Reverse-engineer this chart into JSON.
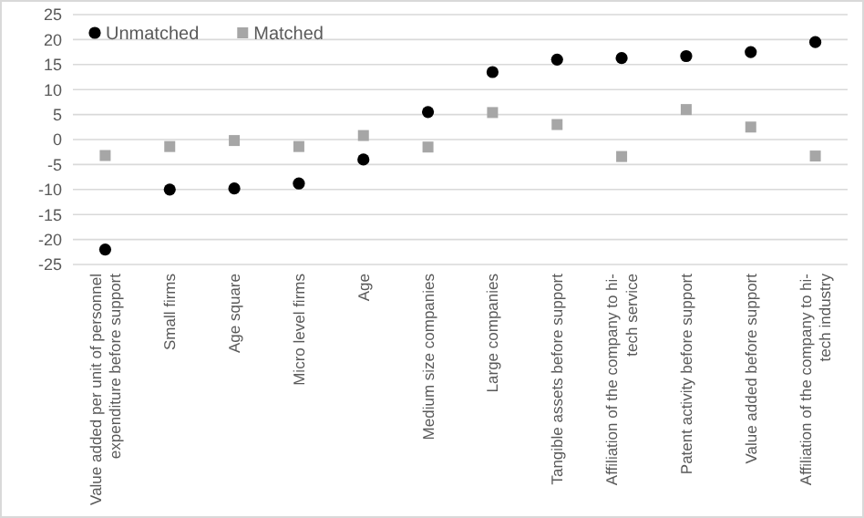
{
  "chart_data": {
    "type": "scatter",
    "categories": [
      "Value added per unit of personnel expenditure before support",
      "Small firms",
      "Age square",
      "Micro level firms",
      "Age",
      "Medium size companies",
      "Large companies",
      "Tangible assets before support",
      "Affiliation of the company to hi-tech service",
      "Patent activity before support",
      "Value added before support",
      "Affiliation of the company to hi-tech industry"
    ],
    "series": [
      {
        "name": "Unmatched",
        "color": "#000000",
        "marker": "circle",
        "values": [
          -22,
          -10,
          -9.8,
          -8.8,
          -4,
          5.5,
          13.5,
          16,
          16.3,
          16.7,
          17.5,
          19.5
        ]
      },
      {
        "name": "Matched",
        "color": "#a6a6a6",
        "marker": "square",
        "values": [
          -3.2,
          -1.4,
          -0.2,
          -1.4,
          0.8,
          -1.5,
          5.4,
          3,
          -3.4,
          6,
          2.5,
          -3.3
        ]
      }
    ],
    "ylim": [
      -25,
      25
    ],
    "yticks": [
      -25,
      -20,
      -15,
      -10,
      -5,
      0,
      5,
      10,
      15,
      20,
      25
    ],
    "grid": "y",
    "legend": "top left"
  }
}
